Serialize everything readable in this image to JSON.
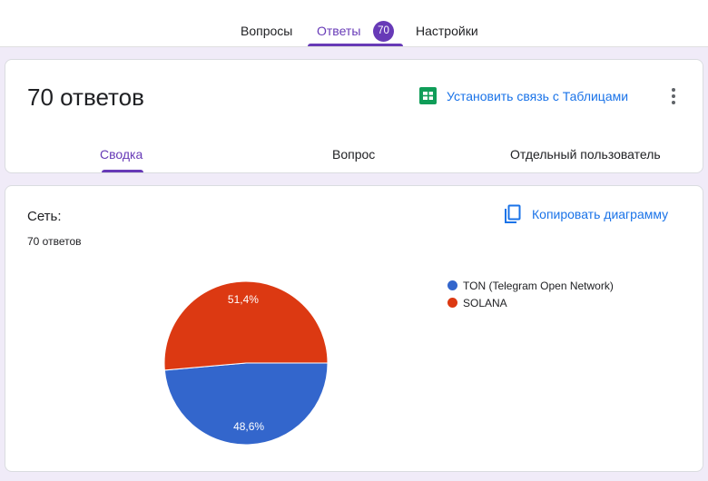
{
  "top_tabs": {
    "questions": "Вопросы",
    "responses": "Ответы",
    "responses_badge": "70",
    "settings": "Настройки"
  },
  "summary_card": {
    "title": "70 ответов",
    "link_sheets": "Установить связь с Таблицами",
    "subtabs": {
      "summary": "Сводка",
      "question": "Вопрос",
      "individual": "Отдельный пользователь"
    }
  },
  "question_card": {
    "title": "Сеть:",
    "count": "70 ответов",
    "copy_chart": "Копировать диаграмму"
  },
  "colors": {
    "accent": "#673ab7",
    "link": "#1a73e8",
    "sheets_green": "#0f9d58"
  },
  "chart_data": {
    "type": "pie",
    "slices": [
      {
        "label": "TON (Telegram Open Network)",
        "percent_label": "48,6%",
        "value": 48.6,
        "color": "#3366cc"
      },
      {
        "label": "SOLANA",
        "percent_label": "51,4%",
        "value": 51.4,
        "color": "#dc3912"
      }
    ],
    "legend_position": "right"
  }
}
